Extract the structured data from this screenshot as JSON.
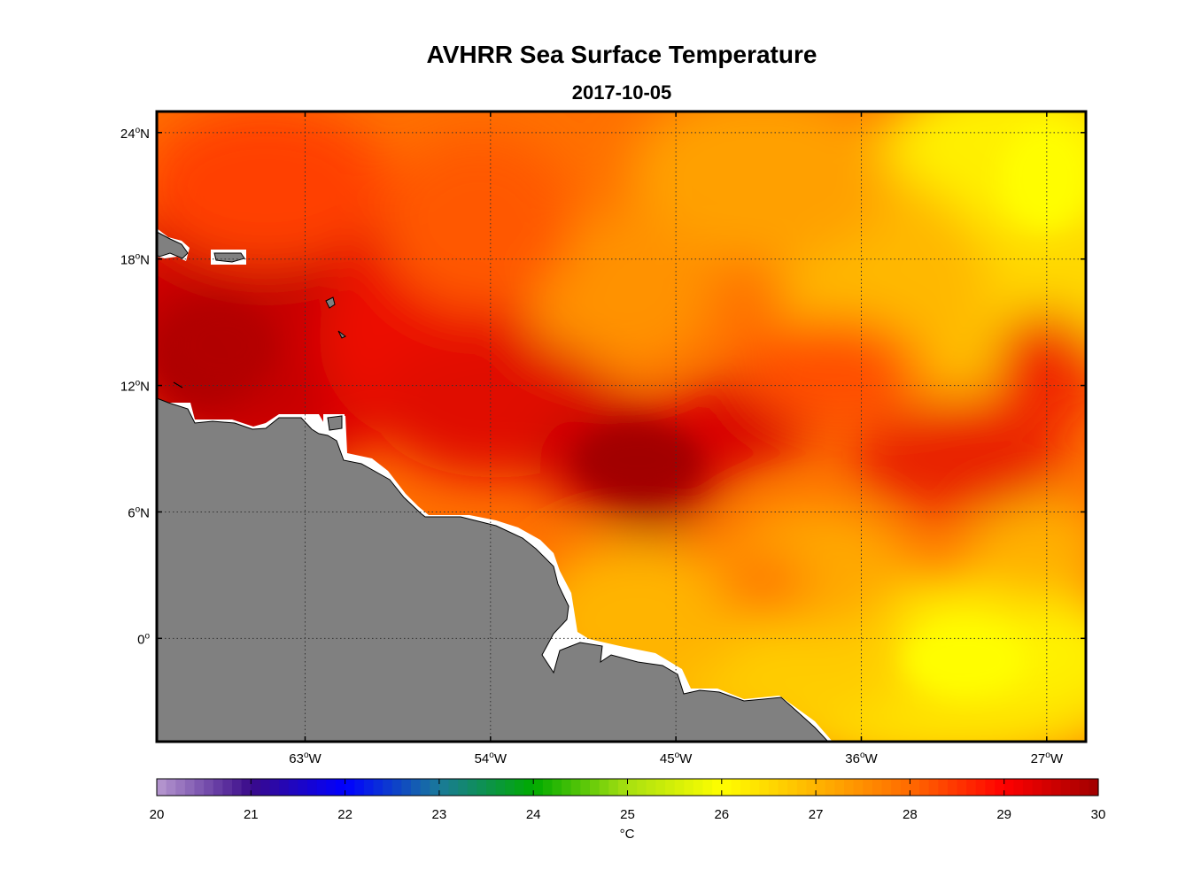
{
  "title": "AVHRR Sea Surface Temperature",
  "subtitle": "2017-10-05",
  "chart_data": {
    "type": "heatmap",
    "title": "AVHRR Sea Surface Temperature",
    "subtitle": "2017-10-05",
    "lon_ticks": [
      {
        "value": -63,
        "text": "63",
        "suffix": "W"
      },
      {
        "value": -54,
        "text": "54",
        "suffix": "W"
      },
      {
        "value": -45,
        "text": "45",
        "suffix": "W"
      },
      {
        "value": -36,
        "text": "36",
        "suffix": "W"
      },
      {
        "value": -27,
        "text": "27",
        "suffix": "W"
      }
    ],
    "lat_ticks": [
      {
        "value": 24,
        "text": "24",
        "suffix": "N"
      },
      {
        "value": 18,
        "text": "18",
        "suffix": "N"
      },
      {
        "value": 12,
        "text": "12",
        "suffix": "N"
      },
      {
        "value": 6,
        "text": "6",
        "suffix": "N"
      },
      {
        "value": 0,
        "text": "0",
        "suffix": ""
      }
    ],
    "lon_range": [
      -70.2,
      -25.1
    ],
    "lat_range": [
      -4.9,
      25
    ],
    "grid": "dotted",
    "colorbar": {
      "ticks": [
        20,
        21,
        22,
        23,
        24,
        25,
        26,
        27,
        28,
        29,
        30
      ],
      "range": [
        20,
        30
      ],
      "unit": "°C",
      "colors": [
        "#b89ad0",
        "#3a0a8a",
        "#0000ff",
        "#1a7a9a",
        "#00aa00",
        "#a8e010",
        "#ffff00",
        "#ffb400",
        "#ff6a00",
        "#ff0000",
        "#a00000"
      ]
    },
    "land_color": "#808080",
    "ocean_field_colors": {
      "warmest": "#a80000",
      "hot": "#e00c00",
      "warm": "#ff5a00",
      "mild": "#ffa000",
      "cool": "#ffe800"
    }
  }
}
